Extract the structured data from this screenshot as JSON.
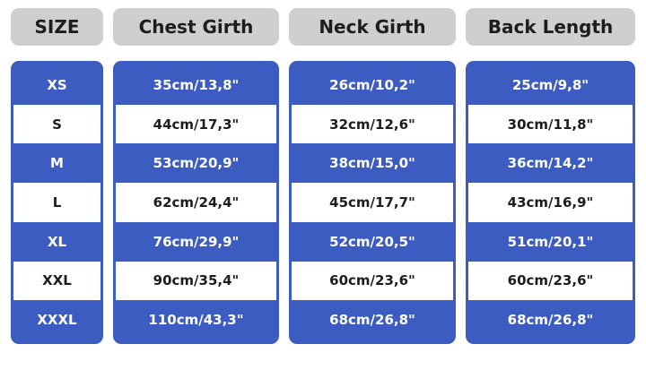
{
  "header": [
    "SIZE",
    "Chest Girth",
    "Neck Girth",
    "Back Length"
  ],
  "rows": [
    [
      "XS",
      "35cm/13,8\"",
      "26cm/10,2\"",
      "25cm/9,8\""
    ],
    [
      "S",
      "44cm/17,3\"",
      "32cm/12,6\"",
      "30cm/11,8\""
    ],
    [
      "M",
      "53cm/20,9\"",
      "38cm/15,0\"",
      "36cm/14,2\""
    ],
    [
      "L",
      "62cm/24,4\"",
      "45cm/17,7\"",
      "43cm/16,9\""
    ],
    [
      "XL",
      "76cm/29,9\"",
      "52cm/20,5\"",
      "51cm/20,1\""
    ],
    [
      "XXL",
      "90cm/35,4\"",
      "60cm/23,6\"",
      "60cm/23,6\""
    ],
    [
      "XXXL",
      "110cm/43,3\"",
      "68cm/26,8\"",
      "68cm/26,8\""
    ]
  ]
}
